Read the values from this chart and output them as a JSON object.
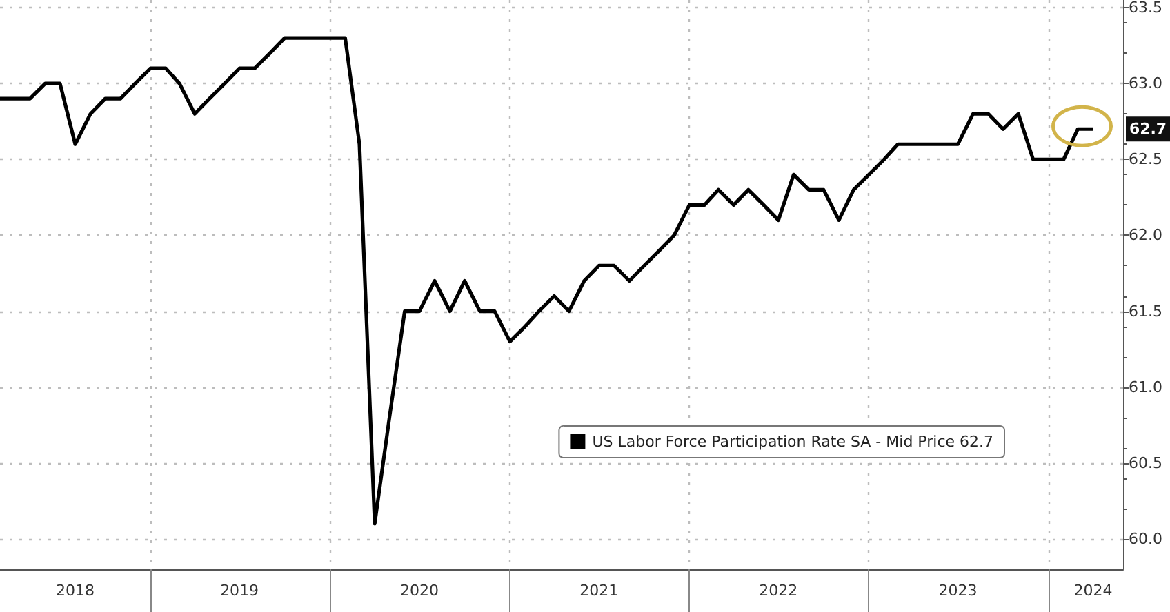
{
  "chart_data": {
    "type": "line",
    "x": [
      "2018-03",
      "2018-04",
      "2018-05",
      "2018-06",
      "2018-07",
      "2018-08",
      "2018-09",
      "2018-10",
      "2018-11",
      "2018-12",
      "2019-01",
      "2019-02",
      "2019-03",
      "2019-04",
      "2019-05",
      "2019-06",
      "2019-07",
      "2019-08",
      "2019-09",
      "2019-10",
      "2019-11",
      "2019-12",
      "2020-01",
      "2020-02",
      "2020-03",
      "2020-04",
      "2020-05",
      "2020-06",
      "2020-07",
      "2020-08",
      "2020-09",
      "2020-10",
      "2020-11",
      "2020-12",
      "2021-01",
      "2021-02",
      "2021-03",
      "2021-04",
      "2021-05",
      "2021-06",
      "2021-07",
      "2021-08",
      "2021-09",
      "2021-10",
      "2021-11",
      "2021-12",
      "2022-01",
      "2022-02",
      "2022-03",
      "2022-04",
      "2022-05",
      "2022-06",
      "2022-07",
      "2022-08",
      "2022-09",
      "2022-10",
      "2022-11",
      "2022-12",
      "2023-01",
      "2023-02",
      "2023-03",
      "2023-04",
      "2023-05",
      "2023-06",
      "2023-07",
      "2023-08",
      "2023-09",
      "2023-10",
      "2023-11",
      "2023-12",
      "2024-01",
      "2024-02",
      "2024-03",
      "2024-04"
    ],
    "series": [
      {
        "name": "US Labor Force Participation Rate SA - Mid Price 62.7",
        "color": "#000000",
        "values": [
          62.9,
          62.9,
          62.9,
          63.0,
          63.0,
          62.6,
          62.8,
          62.9,
          62.9,
          63.0,
          63.1,
          63.1,
          63.0,
          62.8,
          62.9,
          63.0,
          63.1,
          63.1,
          63.2,
          63.3,
          63.3,
          63.3,
          63.3,
          63.3,
          62.6,
          60.1,
          60.8,
          61.5,
          61.5,
          61.7,
          61.5,
          61.7,
          61.5,
          61.5,
          61.3,
          61.4,
          61.5,
          61.6,
          61.5,
          61.7,
          61.8,
          61.8,
          61.7,
          61.8,
          61.9,
          62.0,
          62.2,
          62.2,
          62.3,
          62.2,
          62.3,
          62.2,
          62.1,
          62.4,
          62.3,
          62.3,
          62.1,
          62.3,
          62.4,
          62.5,
          62.6,
          62.6,
          62.6,
          62.6,
          62.6,
          62.8,
          62.8,
          62.7,
          62.8,
          62.5,
          62.5,
          62.5,
          62.7,
          62.7
        ]
      }
    ],
    "xlim": [
      "2018-03",
      "2024-06"
    ],
    "xticks": [
      {
        "value": "2018-08",
        "label": "2018"
      },
      {
        "value": "2019-01",
        "label": null
      },
      {
        "value": "2019-07",
        "label": "2019"
      },
      {
        "value": "2020-01",
        "label": null
      },
      {
        "value": "2020-07",
        "label": "2020"
      },
      {
        "value": "2021-01",
        "label": null
      },
      {
        "value": "2021-07",
        "label": "2021"
      },
      {
        "value": "2022-01",
        "label": null
      },
      {
        "value": "2022-07",
        "label": "2022"
      },
      {
        "value": "2023-01",
        "label": null
      },
      {
        "value": "2023-07",
        "label": "2023"
      },
      {
        "value": "2024-01",
        "label": null
      },
      {
        "value": "2024-04",
        "label": "2024"
      }
    ],
    "ylim": [
      59.8,
      63.55
    ],
    "yticks": [
      {
        "value": 60,
        "label": "60.0"
      },
      {
        "value": 60.5,
        "label": "60.5"
      },
      {
        "value": 61,
        "label": "61.0"
      },
      {
        "value": 61.5,
        "label": "61.5"
      },
      {
        "value": 62,
        "label": "62.0"
      },
      {
        "value": 62.5,
        "label": "62.5"
      },
      {
        "value": 63,
        "label": "63.0"
      },
      {
        "value": 63.5,
        "label": "63.5"
      }
    ],
    "annotations": [
      {
        "text": "62.7",
        "x": "2024-04",
        "y": 62.7
      }
    ],
    "grid": true,
    "legend": "bottom right",
    "marker": "none",
    "line_style": "solid"
  }
}
